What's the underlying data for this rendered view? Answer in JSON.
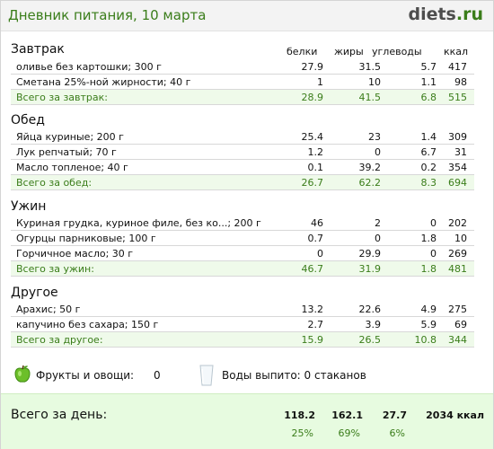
{
  "header": {
    "title": "Дневник питания, 10 марта",
    "logo_main": "diets",
    "logo_dot": ".",
    "logo_tld": "ru"
  },
  "columns": {
    "protein": "белки",
    "fat": "жиры",
    "carbs": "углеводы",
    "kcal": "ккал"
  },
  "sections": [
    {
      "title": "Завтрак",
      "items": [
        {
          "name": "оливье без картошки; 300 г",
          "protein": "27.9",
          "fat": "31.5",
          "carbs": "5.7",
          "kcal": "417"
        },
        {
          "name": "Сметана 25%-ной жирности; 40 г",
          "protein": "1",
          "fat": "10",
          "carbs": "1.1",
          "kcal": "98"
        }
      ],
      "total": {
        "name": "Всего за завтрак:",
        "protein": "28.9",
        "fat": "41.5",
        "carbs": "6.8",
        "kcal": "515"
      }
    },
    {
      "title": "Обед",
      "items": [
        {
          "name": "Яйца куриные; 200 г",
          "protein": "25.4",
          "fat": "23",
          "carbs": "1.4",
          "kcal": "309"
        },
        {
          "name": "Лук репчатый; 70 г",
          "protein": "1.2",
          "fat": "0",
          "carbs": "6.7",
          "kcal": "31"
        },
        {
          "name": "Масло топленое; 40 г",
          "protein": "0.1",
          "fat": "39.2",
          "carbs": "0.2",
          "kcal": "354"
        }
      ],
      "total": {
        "name": "Всего за обед:",
        "protein": "26.7",
        "fat": "62.2",
        "carbs": "8.3",
        "kcal": "694"
      }
    },
    {
      "title": "Ужин",
      "items": [
        {
          "name": "Куриная грудка, куриное филе, без ко...; 200 г",
          "protein": "46",
          "fat": "2",
          "carbs": "0",
          "kcal": "202"
        },
        {
          "name": "Огурцы парниковые; 100 г",
          "protein": "0.7",
          "fat": "0",
          "carbs": "1.8",
          "kcal": "10"
        },
        {
          "name": "Горчичное масло; 30 г",
          "protein": "0",
          "fat": "29.9",
          "carbs": "0",
          "kcal": "269"
        }
      ],
      "total": {
        "name": "Всего за ужин:",
        "protein": "46.7",
        "fat": "31.9",
        "carbs": "1.8",
        "kcal": "481"
      }
    },
    {
      "title": "Другое",
      "items": [
        {
          "name": "Арахис; 50 г",
          "protein": "13.2",
          "fat": "22.6",
          "carbs": "4.9",
          "kcal": "275"
        },
        {
          "name": "капучино без сахара; 150 г",
          "protein": "2.7",
          "fat": "3.9",
          "carbs": "5.9",
          "kcal": "69"
        }
      ],
      "total": {
        "name": "Всего за другое:",
        "protein": "15.9",
        "fat": "26.5",
        "carbs": "10.8",
        "kcal": "344"
      }
    }
  ],
  "extras": {
    "fruit_label": "Фрукты и овощи:",
    "fruit_value": "0",
    "water_label": "Воды выпито: 0 стаканов",
    "apple_icon": "apple-icon",
    "glass_icon": "water-glass-icon"
  },
  "day_total": {
    "label": "Всего за день:",
    "protein": "118.2",
    "fat": "162.1",
    "carbs": "27.7",
    "kcal": "2034 ккал",
    "protein_pct": "25%",
    "fat_pct": "69%",
    "carbs_pct": "6%"
  },
  "colors": {
    "accent": "#3a7d1a",
    "total_row_bg": "#effaea",
    "day_bg": "#e7fbe0"
  }
}
